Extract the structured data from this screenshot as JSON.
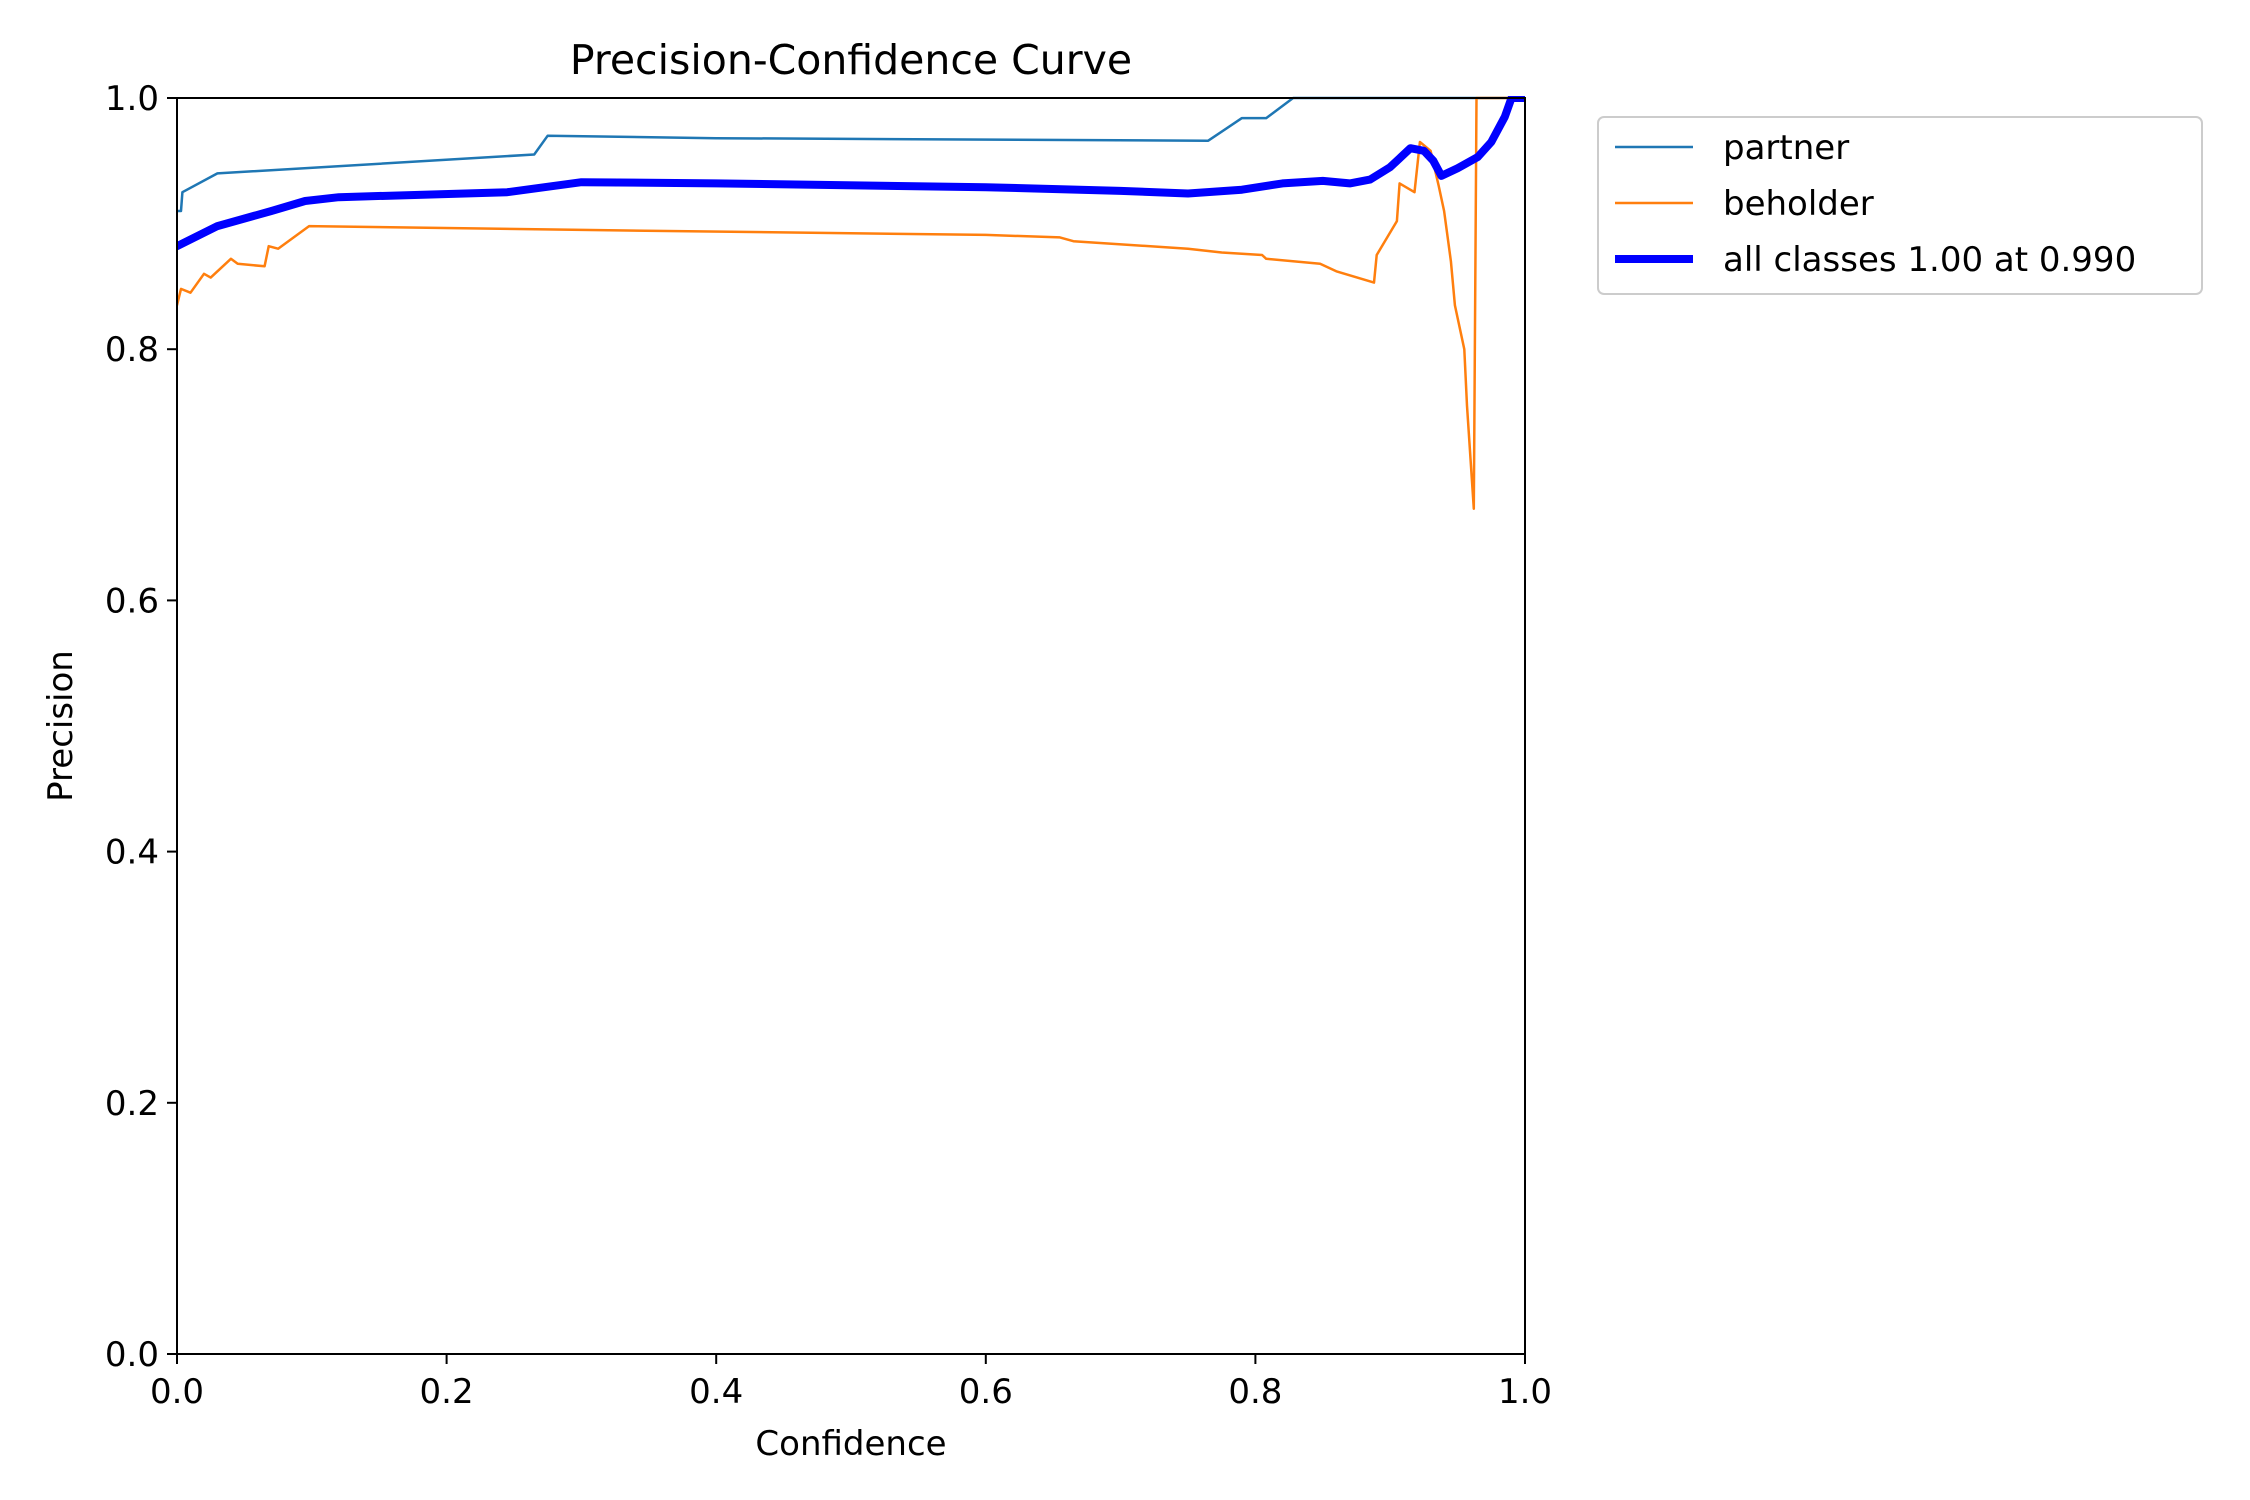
{
  "chart_data": {
    "type": "line",
    "title": "Precision-Confidence Curve",
    "xlabel": "Confidence",
    "ylabel": "Precision",
    "xlim": [
      0,
      1
    ],
    "ylim": [
      0,
      1
    ],
    "xticks": [
      0.0,
      0.2,
      0.4,
      0.6,
      0.8,
      1.0
    ],
    "yticks": [
      0.0,
      0.2,
      0.4,
      0.6,
      0.8,
      1.0
    ],
    "xtick_labels": [
      "0.0",
      "0.2",
      "0.4",
      "0.6",
      "0.8",
      "1.0"
    ],
    "ytick_labels": [
      "0.0",
      "0.2",
      "0.4",
      "0.6",
      "0.8",
      "1.0"
    ],
    "grid": false,
    "legend_position": "outside-top-right",
    "series": [
      {
        "name": "partner",
        "color": "#1f77b4",
        "points": [
          [
            0.0,
            0.91
          ],
          [
            0.003,
            0.91
          ],
          [
            0.004,
            0.925
          ],
          [
            0.03,
            0.94
          ],
          [
            0.265,
            0.955
          ],
          [
            0.275,
            0.97
          ],
          [
            0.4,
            0.968
          ],
          [
            0.765,
            0.966
          ],
          [
            0.79,
            0.984
          ],
          [
            0.808,
            0.984
          ],
          [
            0.828,
            1.0
          ],
          [
            1.0,
            1.0
          ]
        ]
      },
      {
        "name": "beholder",
        "color": "#ff7f0e",
        "points": [
          [
            0.0,
            0.835
          ],
          [
            0.003,
            0.848
          ],
          [
            0.01,
            0.845
          ],
          [
            0.02,
            0.86
          ],
          [
            0.025,
            0.857
          ],
          [
            0.04,
            0.872
          ],
          [
            0.045,
            0.868
          ],
          [
            0.065,
            0.866
          ],
          [
            0.068,
            0.882
          ],
          [
            0.075,
            0.88
          ],
          [
            0.098,
            0.898
          ],
          [
            0.3,
            0.895
          ],
          [
            0.6,
            0.891
          ],
          [
            0.655,
            0.889
          ],
          [
            0.665,
            0.886
          ],
          [
            0.75,
            0.88
          ],
          [
            0.775,
            0.877
          ],
          [
            0.805,
            0.875
          ],
          [
            0.808,
            0.872
          ],
          [
            0.848,
            0.868
          ],
          [
            0.86,
            0.862
          ],
          [
            0.888,
            0.853
          ],
          [
            0.89,
            0.875
          ],
          [
            0.905,
            0.902
          ],
          [
            0.907,
            0.932
          ],
          [
            0.918,
            0.925
          ],
          [
            0.922,
            0.965
          ],
          [
            0.93,
            0.958
          ],
          [
            0.936,
            0.93
          ],
          [
            0.94,
            0.91
          ],
          [
            0.945,
            0.87
          ],
          [
            0.948,
            0.835
          ],
          [
            0.955,
            0.8
          ],
          [
            0.957,
            0.755
          ],
          [
            0.962,
            0.673
          ],
          [
            0.964,
            1.0
          ],
          [
            1.0,
            1.0
          ]
        ]
      },
      {
        "name": "all classes 1.00 at 0.990",
        "color": "#0000ff",
        "points": [
          [
            0.0,
            0.882
          ],
          [
            0.03,
            0.898
          ],
          [
            0.07,
            0.91
          ],
          [
            0.095,
            0.918
          ],
          [
            0.12,
            0.921
          ],
          [
            0.245,
            0.925
          ],
          [
            0.3,
            0.933
          ],
          [
            0.4,
            0.932
          ],
          [
            0.6,
            0.929
          ],
          [
            0.7,
            0.926
          ],
          [
            0.75,
            0.924
          ],
          [
            0.79,
            0.927
          ],
          [
            0.82,
            0.932
          ],
          [
            0.85,
            0.934
          ],
          [
            0.87,
            0.932
          ],
          [
            0.885,
            0.935
          ],
          [
            0.9,
            0.945
          ],
          [
            0.915,
            0.96
          ],
          [
            0.925,
            0.958
          ],
          [
            0.932,
            0.95
          ],
          [
            0.938,
            0.938
          ],
          [
            0.95,
            0.944
          ],
          [
            0.965,
            0.953
          ],
          [
            0.975,
            0.965
          ],
          [
            0.985,
            0.985
          ],
          [
            0.99,
            1.0
          ],
          [
            1.0,
            1.0
          ]
        ]
      }
    ]
  }
}
